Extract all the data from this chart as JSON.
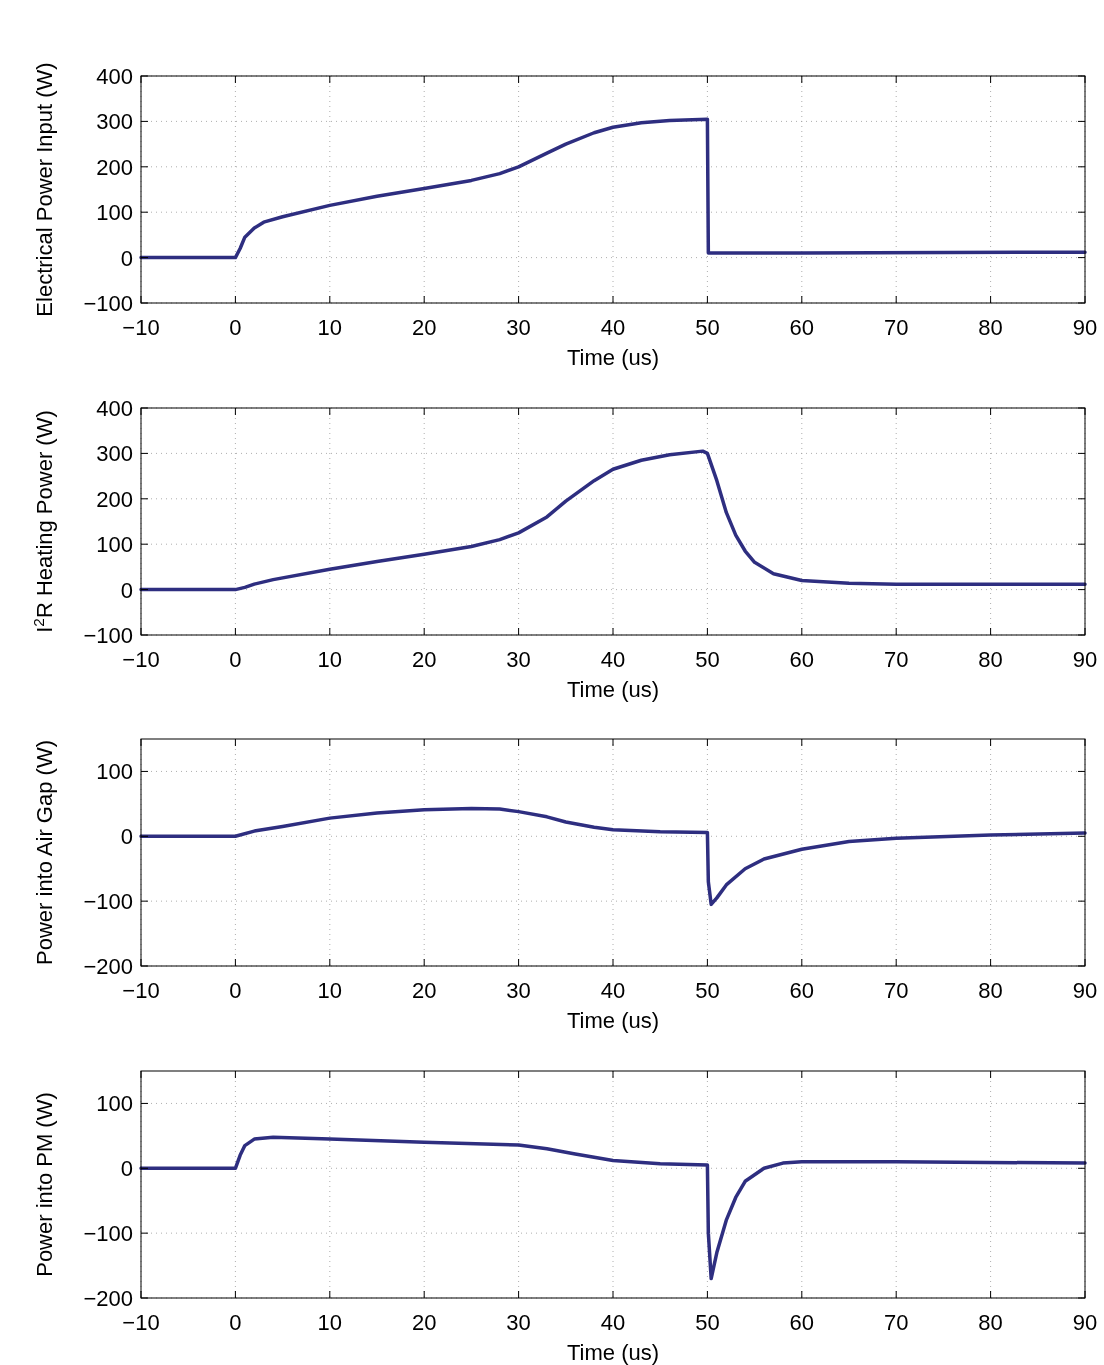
{
  "chart_data": [
    {
      "type": "line",
      "xlabel": "Time (us)",
      "ylabel": "Electrical Power Input (W)",
      "xlim": [
        -10,
        90
      ],
      "xticks": [
        -10,
        0,
        10,
        20,
        30,
        40,
        50,
        60,
        70,
        80,
        90
      ],
      "ylim": [
        -100,
        400
      ],
      "yticks": [
        -100,
        0,
        100,
        200,
        300,
        400
      ],
      "grid": true,
      "series": [
        {
          "color": "#2e2e80",
          "x": [
            -10,
            0,
            0.5,
            1,
            2,
            3,
            5,
            10,
            15,
            20,
            25,
            28,
            30,
            33,
            35,
            38,
            40,
            43,
            46,
            50,
            50.1,
            60,
            90
          ],
          "values": [
            0,
            0,
            20,
            45,
            65,
            78,
            90,
            115,
            135,
            152,
            170,
            185,
            200,
            230,
            250,
            275,
            287,
            297,
            302,
            305,
            10,
            10,
            12
          ]
        }
      ]
    },
    {
      "type": "line",
      "xlabel": "Time (us)",
      "ylabel": "I$^{2}$R Heating Power (W)",
      "xlim": [
        -10,
        90
      ],
      "xticks": [
        -10,
        0,
        10,
        20,
        30,
        40,
        50,
        60,
        70,
        80,
        90
      ],
      "ylim": [
        -100,
        400
      ],
      "yticks": [
        -100,
        0,
        100,
        200,
        300,
        400
      ],
      "grid": true,
      "series": [
        {
          "color": "#2e2e80",
          "x": [
            -10,
            0,
            1,
            2,
            4,
            10,
            15,
            20,
            25,
            28,
            30,
            33,
            35,
            38,
            40,
            43,
            46,
            49.5,
            50,
            51,
            52,
            53,
            54,
            55,
            57,
            60,
            65,
            70,
            90
          ],
          "values": [
            0,
            0,
            5,
            12,
            22,
            45,
            62,
            78,
            95,
            110,
            125,
            160,
            195,
            240,
            265,
            285,
            297,
            305,
            300,
            240,
            170,
            120,
            85,
            60,
            35,
            20,
            14,
            12,
            12
          ]
        }
      ]
    },
    {
      "type": "line",
      "xlabel": "Time (us)",
      "ylabel": "Power into Air Gap (W)",
      "xlim": [
        -10,
        90
      ],
      "xticks": [
        -10,
        0,
        10,
        20,
        30,
        40,
        50,
        60,
        70,
        80,
        90
      ],
      "ylim": [
        -200,
        150
      ],
      "yticks": [
        -200,
        -100,
        0,
        100
      ],
      "grid": true,
      "series": [
        {
          "color": "#2e2e80",
          "x": [
            -10,
            0,
            2,
            5,
            10,
            15,
            20,
            25,
            28,
            30,
            33,
            35,
            38,
            40,
            45,
            50,
            50.1,
            50.4,
            51,
            52,
            54,
            56,
            60,
            65,
            70,
            80,
            90
          ],
          "values": [
            0,
            0,
            8,
            15,
            28,
            36,
            41,
            43,
            42,
            38,
            30,
            22,
            14,
            10,
            7,
            6,
            -70,
            -105,
            -95,
            -75,
            -50,
            -35,
            -20,
            -8,
            -3,
            2,
            5
          ]
        }
      ]
    },
    {
      "type": "line",
      "xlabel": "Time (us)",
      "ylabel": "Power into PM (W)",
      "xlim": [
        -10,
        90
      ],
      "xticks": [
        -10,
        0,
        10,
        20,
        30,
        40,
        50,
        60,
        70,
        80,
        90
      ],
      "ylim": [
        -200,
        150
      ],
      "yticks": [
        -200,
        -100,
        0,
        100
      ],
      "grid": true,
      "series": [
        {
          "color": "#2e2e80",
          "x": [
            -10,
            0,
            0.5,
            1,
            2,
            4,
            10,
            20,
            30,
            33,
            36,
            40,
            45,
            50,
            50.1,
            50.4,
            51,
            52,
            53,
            54,
            56,
            58,
            60,
            70,
            90
          ],
          "values": [
            0,
            0,
            20,
            35,
            45,
            48,
            45,
            40,
            36,
            30,
            22,
            12,
            7,
            5,
            -100,
            -170,
            -130,
            -80,
            -45,
            -20,
            0,
            8,
            10,
            10,
            8
          ]
        }
      ]
    }
  ]
}
